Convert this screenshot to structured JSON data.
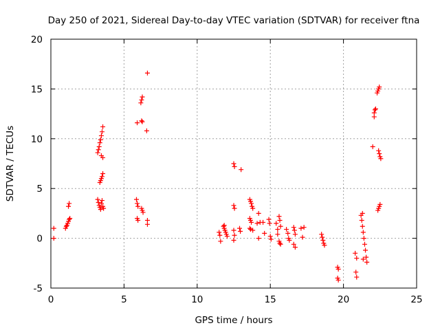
{
  "chart_data": {
    "type": "scatter",
    "title": "Day 250 of 2021, Sidereal Day-to-day VTEC variation (SDTVAR) for receiver ftna",
    "xlabel": "GPS time / hours",
    "ylabel": "SDTVAR / TECUs",
    "xlim": [
      0,
      25
    ],
    "ylim": [
      -5,
      20
    ],
    "xticks": [
      0,
      5,
      10,
      15,
      20,
      25
    ],
    "yticks": [
      -5,
      0,
      5,
      10,
      15,
      20
    ],
    "xtick_labels": [
      "0",
      "5",
      "10",
      "15",
      "20",
      "25"
    ],
    "ytick_labels": [
      "-5",
      "0",
      "5",
      "10",
      "15",
      "20"
    ],
    "grid": true,
    "marker": "+",
    "color": "#ff0000",
    "series": [
      {
        "name": "SDTVAR",
        "points": [
          [
            0.2,
            1.0
          ],
          [
            0.2,
            0.0
          ],
          [
            1.0,
            1.0
          ],
          [
            1.05,
            1.2
          ],
          [
            1.1,
            1.3
          ],
          [
            1.15,
            1.5
          ],
          [
            1.2,
            1.7
          ],
          [
            1.25,
            1.9
          ],
          [
            1.3,
            2.0
          ],
          [
            1.2,
            3.2
          ],
          [
            1.25,
            3.5
          ],
          [
            3.2,
            8.6
          ],
          [
            3.25,
            8.9
          ],
          [
            3.3,
            9.2
          ],
          [
            3.35,
            9.6
          ],
          [
            3.4,
            9.9
          ],
          [
            3.45,
            10.3
          ],
          [
            3.5,
            10.7
          ],
          [
            3.55,
            11.2
          ],
          [
            3.45,
            8.3
          ],
          [
            3.55,
            8.1
          ],
          [
            3.35,
            5.6
          ],
          [
            3.4,
            5.8
          ],
          [
            3.45,
            6.0
          ],
          [
            3.5,
            6.2
          ],
          [
            3.55,
            6.5
          ],
          [
            3.2,
            3.9
          ],
          [
            3.25,
            3.6
          ],
          [
            3.3,
            3.3
          ],
          [
            3.35,
            3.1
          ],
          [
            3.4,
            2.9
          ],
          [
            3.45,
            3.5
          ],
          [
            3.5,
            3.8
          ],
          [
            3.55,
            3.2
          ],
          [
            3.6,
            3.0
          ],
          [
            5.9,
            11.6
          ],
          [
            6.2,
            11.8
          ],
          [
            6.25,
            11.7
          ],
          [
            6.15,
            13.6
          ],
          [
            6.2,
            13.9
          ],
          [
            6.25,
            14.2
          ],
          [
            6.6,
            16.6
          ],
          [
            6.55,
            10.8
          ],
          [
            5.85,
            3.9
          ],
          [
            5.9,
            3.5
          ],
          [
            5.95,
            3.2
          ],
          [
            5.9,
            2.0
          ],
          [
            5.95,
            1.8
          ],
          [
            6.2,
            3.0
          ],
          [
            6.25,
            2.8
          ],
          [
            6.3,
            2.6
          ],
          [
            6.6,
            1.8
          ],
          [
            6.6,
            1.4
          ],
          [
            11.5,
            0.6
          ],
          [
            11.55,
            0.3
          ],
          [
            11.6,
            -0.3
          ],
          [
            11.8,
            1.2
          ],
          [
            11.85,
            1.0
          ],
          [
            11.9,
            0.8
          ],
          [
            11.95,
            0.6
          ],
          [
            12.0,
            0.4
          ],
          [
            12.05,
            0.2
          ],
          [
            11.85,
            1.3
          ],
          [
            12.5,
            7.5
          ],
          [
            12.55,
            7.2
          ],
          [
            12.5,
            3.3
          ],
          [
            12.55,
            3.0
          ],
          [
            12.5,
            0.8
          ],
          [
            12.55,
            0.3
          ],
          [
            12.5,
            -0.2
          ],
          [
            12.9,
            1.0
          ],
          [
            12.95,
            0.7
          ],
          [
            13.0,
            6.9
          ],
          [
            13.6,
            3.9
          ],
          [
            13.65,
            3.7
          ],
          [
            13.7,
            3.5
          ],
          [
            13.75,
            3.2
          ],
          [
            13.8,
            3.0
          ],
          [
            13.6,
            2.0
          ],
          [
            13.65,
            1.8
          ],
          [
            13.7,
            1.6
          ],
          [
            13.6,
            1.0
          ],
          [
            13.65,
            0.9
          ],
          [
            13.8,
            0.8
          ],
          [
            14.2,
            2.5
          ],
          [
            14.3,
            1.6
          ],
          [
            14.1,
            1.5
          ],
          [
            14.2,
            0.0
          ],
          [
            14.5,
            1.6
          ],
          [
            14.6,
            0.5
          ],
          [
            14.9,
            1.9
          ],
          [
            14.95,
            1.5
          ],
          [
            15.0,
            0.2
          ],
          [
            15.05,
            -0.1
          ],
          [
            15.4,
            1.5
          ],
          [
            15.5,
            0.9
          ],
          [
            15.6,
            2.2
          ],
          [
            15.65,
            1.8
          ],
          [
            15.7,
            1.2
          ],
          [
            15.6,
            -0.3
          ],
          [
            15.65,
            -0.5
          ],
          [
            15.7,
            -0.6
          ],
          [
            15.5,
            0.4
          ],
          [
            16.1,
            0.9
          ],
          [
            16.2,
            0.5
          ],
          [
            16.25,
            0.0
          ],
          [
            16.3,
            -0.2
          ],
          [
            16.6,
            1.1
          ],
          [
            16.65,
            0.8
          ],
          [
            16.7,
            0.4
          ],
          [
            16.6,
            -0.6
          ],
          [
            16.7,
            -0.9
          ],
          [
            17.1,
            1.0
          ],
          [
            17.2,
            0.1
          ],
          [
            17.3,
            1.1
          ],
          [
            18.5,
            0.4
          ],
          [
            18.55,
            0.1
          ],
          [
            18.6,
            -0.2
          ],
          [
            18.65,
            -0.5
          ],
          [
            18.7,
            -0.7
          ],
          [
            19.6,
            -2.9
          ],
          [
            19.65,
            -3.1
          ],
          [
            19.6,
            -4.0
          ],
          [
            19.65,
            -4.2
          ],
          [
            20.8,
            -1.5
          ],
          [
            20.9,
            -2.0
          ],
          [
            20.85,
            -3.4
          ],
          [
            20.9,
            -3.9
          ],
          [
            21.2,
            2.3
          ],
          [
            21.25,
            1.8
          ],
          [
            21.3,
            1.2
          ],
          [
            21.35,
            0.6
          ],
          [
            21.4,
            0.0
          ],
          [
            21.45,
            -0.6
          ],
          [
            21.5,
            -1.2
          ],
          [
            21.55,
            -1.9
          ],
          [
            21.6,
            -2.4
          ],
          [
            21.3,
            2.5
          ],
          [
            21.35,
            -2.1
          ],
          [
            22.0,
            9.2
          ],
          [
            22.1,
            12.6
          ],
          [
            22.15,
            12.9
          ],
          [
            22.2,
            13.0
          ],
          [
            22.1,
            12.2
          ],
          [
            22.4,
            8.8
          ],
          [
            22.45,
            8.5
          ],
          [
            22.5,
            8.2
          ],
          [
            22.55,
            8.0
          ],
          [
            22.3,
            14.6
          ],
          [
            22.35,
            14.8
          ],
          [
            22.4,
            15.0
          ],
          [
            22.45,
            15.2
          ],
          [
            22.4,
            3.0
          ],
          [
            22.45,
            3.2
          ],
          [
            22.5,
            3.4
          ],
          [
            22.35,
            2.8
          ]
        ]
      }
    ]
  }
}
